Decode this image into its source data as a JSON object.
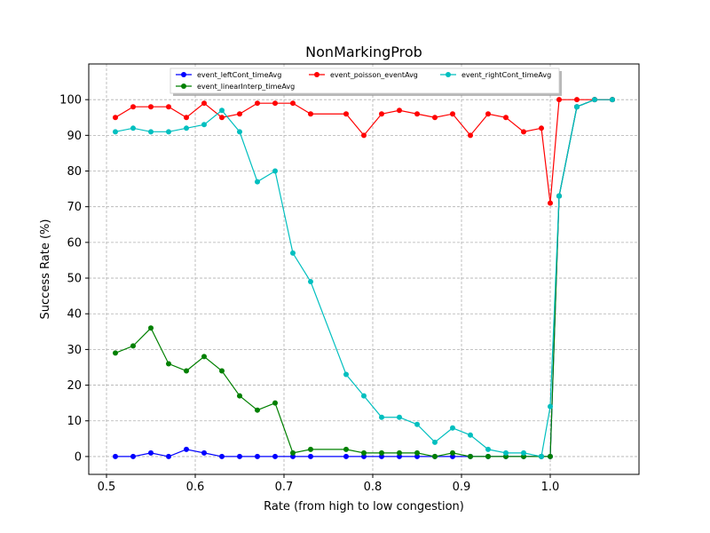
{
  "chart_data": {
    "type": "line",
    "title": "NonMarkingProb",
    "xlabel": "Rate (from high to low congestion)",
    "ylabel": "Success Rate (%)",
    "xlim": [
      0.48,
      1.1
    ],
    "ylim": [
      -5,
      110
    ],
    "xticks": [
      0.5,
      0.6,
      0.7,
      0.8,
      0.9,
      1.0
    ],
    "xtick_labels": [
      "0.5",
      "0.6",
      "0.7",
      "0.8",
      "0.9",
      "1.0"
    ],
    "yticks": [
      0,
      10,
      20,
      30,
      40,
      50,
      60,
      70,
      80,
      90,
      100
    ],
    "ytick_labels": [
      "0",
      "10",
      "20",
      "30",
      "40",
      "50",
      "60",
      "70",
      "80",
      "90",
      "100"
    ],
    "grid": true,
    "legend_position": "top-center",
    "series": [
      {
        "name": "event_leftCont_timeAvg",
        "color": "#0000ff",
        "x": [
          0.51,
          0.53,
          0.55,
          0.57,
          0.59,
          0.61,
          0.63,
          0.65,
          0.67,
          0.69,
          0.71,
          0.73,
          0.77,
          0.79,
          0.81,
          0.83,
          0.85,
          0.87,
          0.89,
          0.91,
          0.93,
          0.95,
          0.97,
          0.99,
          1.0,
          1.01,
          1.03,
          1.05,
          1.07
        ],
        "y": [
          0,
          0,
          1,
          0,
          2,
          1,
          0,
          0,
          0,
          0,
          0,
          0,
          0,
          0,
          0,
          0,
          0,
          0,
          0,
          0,
          0,
          0,
          0,
          0,
          0,
          73,
          98,
          100,
          100
        ]
      },
      {
        "name": "event_linearInterp_timeAvg",
        "color": "#008000",
        "x": [
          0.51,
          0.53,
          0.55,
          0.57,
          0.59,
          0.61,
          0.63,
          0.65,
          0.67,
          0.69,
          0.71,
          0.73,
          0.77,
          0.79,
          0.81,
          0.83,
          0.85,
          0.87,
          0.89,
          0.91,
          0.93,
          0.95,
          0.97,
          0.99,
          1.0,
          1.01,
          1.03,
          1.05,
          1.07
        ],
        "y": [
          29,
          31,
          36,
          26,
          24,
          28,
          24,
          17,
          13,
          15,
          1,
          2,
          2,
          1,
          1,
          1,
          1,
          0,
          1,
          0,
          0,
          0,
          0,
          0,
          0,
          73,
          98,
          100,
          100
        ]
      },
      {
        "name": "event_poisson_eventAvg",
        "color": "#ff0000",
        "x": [
          0.51,
          0.53,
          0.55,
          0.57,
          0.59,
          0.61,
          0.63,
          0.65,
          0.67,
          0.69,
          0.71,
          0.73,
          0.77,
          0.79,
          0.81,
          0.83,
          0.85,
          0.87,
          0.89,
          0.91,
          0.93,
          0.95,
          0.97,
          0.99,
          1.0,
          1.01,
          1.03,
          1.05,
          1.07
        ],
        "y": [
          95,
          98,
          98,
          98,
          95,
          99,
          95,
          96,
          99,
          99,
          99,
          96,
          96,
          90,
          96,
          97,
          96,
          95,
          96,
          90,
          96,
          95,
          91,
          92,
          71,
          100,
          100,
          100,
          100
        ]
      },
      {
        "name": "event_rightCont_timeAvg",
        "color": "#00bfbf",
        "x": [
          0.51,
          0.53,
          0.55,
          0.57,
          0.59,
          0.61,
          0.63,
          0.65,
          0.67,
          0.69,
          0.71,
          0.73,
          0.77,
          0.79,
          0.81,
          0.83,
          0.85,
          0.87,
          0.89,
          0.91,
          0.93,
          0.95,
          0.97,
          0.99,
          1.0,
          1.01,
          1.03,
          1.05,
          1.07
        ],
        "y": [
          91,
          92,
          91,
          91,
          92,
          93,
          97,
          91,
          77,
          80,
          57,
          49,
          23,
          17,
          11,
          11,
          9,
          4,
          8,
          6,
          2,
          1,
          1,
          0,
          14,
          73,
          98,
          100,
          100
        ]
      }
    ],
    "legend_order": [
      0,
      1,
      2,
      3
    ]
  }
}
